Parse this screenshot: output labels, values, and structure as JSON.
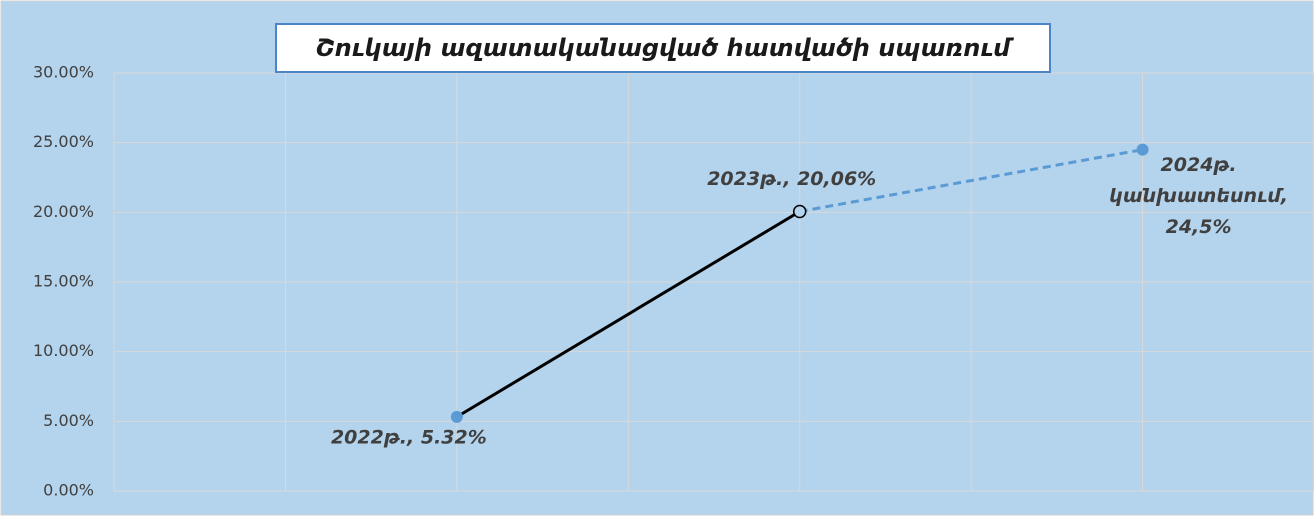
{
  "chart_data": {
    "type": "line",
    "title": "Շուկայի ազատականացված հատվածի սպառում",
    "x": [
      2,
      4,
      6
    ],
    "values": [
      5.32,
      20.06,
      24.5
    ],
    "value_labels": [
      "2022թ., 5.32%",
      "2023թ., 20,06%",
      [
        "2024թ.",
        "կանխատեսում,",
        "24,5%"
      ]
    ],
    "marker_colors": [
      "#5b9bd5",
      "#b4d3ec",
      "#5b9bd5"
    ],
    "segment_colors": [
      "#000000",
      "#5b9bd5"
    ],
    "segment_dashed": [
      false,
      true
    ],
    "xlim": [
      0,
      7
    ],
    "xticks": [
      0,
      1,
      2,
      3,
      4,
      5,
      6,
      7
    ],
    "ylim": [
      0,
      30
    ],
    "yticks": [
      {
        "value": 0,
        "label": "0.00%"
      },
      {
        "value": 5,
        "label": "5.00%"
      },
      {
        "value": 10,
        "label": "10.00%"
      },
      {
        "value": 15,
        "label": "15.00%"
      },
      {
        "value": 20,
        "label": "20.00%"
      },
      {
        "value": 25,
        "label": "25.00%"
      },
      {
        "value": 30,
        "label": "30.00%"
      }
    ],
    "grid": true
  }
}
